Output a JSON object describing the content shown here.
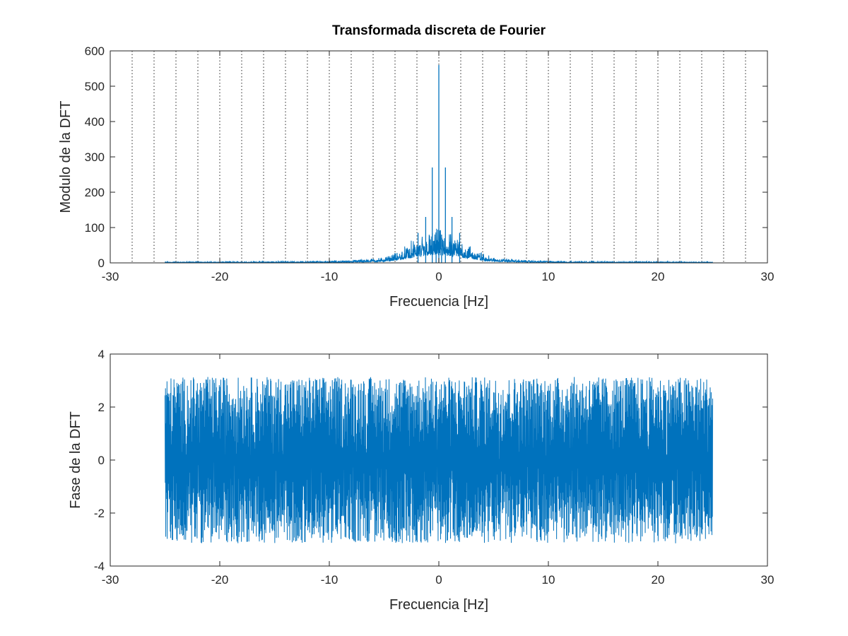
{
  "chart_data": [
    {
      "type": "line",
      "title": "Transformada discreta de Fourier",
      "xlabel": "Frecuencia [Hz]",
      "ylabel": "Modulo de la DFT",
      "xlim": [
        -30,
        30
      ],
      "ylim": [
        0,
        600
      ],
      "xticks": [
        -30,
        -20,
        -10,
        0,
        10,
        20,
        30
      ],
      "yticks": [
        0,
        100,
        200,
        300,
        400,
        500,
        600
      ],
      "xtick_labels": [
        "-30",
        "-20",
        "-10",
        "0",
        "10",
        "20",
        "30"
      ],
      "ytick_labels": [
        "0",
        "100",
        "200",
        "300",
        "400",
        "500",
        "600"
      ],
      "grid": "vertical-dotted",
      "vertical_gridlines_x": [
        -28,
        -26,
        -24,
        -22,
        -20,
        -18,
        -16,
        -14,
        -12,
        -10,
        -8,
        -6,
        -4,
        -2,
        0,
        2,
        4,
        6,
        8,
        10,
        12,
        14,
        16,
        18,
        20,
        22,
        24,
        26,
        28
      ],
      "x_range_of_data": [
        -25,
        25
      ],
      "series_color": "#0072bd",
      "peaks": [
        {
          "x": 0,
          "y": 560
        },
        {
          "x": -0.6,
          "y": 270
        },
        {
          "x": 0.6,
          "y": 270
        },
        {
          "x": -1.2,
          "y": 130
        },
        {
          "x": 1.2,
          "y": 130
        },
        {
          "x": -1.9,
          "y": 85
        },
        {
          "x": 1.9,
          "y": 85
        },
        {
          "x": -0.25,
          "y": 80
        },
        {
          "x": 0.25,
          "y": 80
        }
      ],
      "noise_envelope": [
        {
          "x": -25,
          "y": 2
        },
        {
          "x": -12,
          "y": 3
        },
        {
          "x": -8,
          "y": 5
        },
        {
          "x": -5,
          "y": 10
        },
        {
          "x": -4,
          "y": 18
        },
        {
          "x": -3,
          "y": 30
        },
        {
          "x": -2,
          "y": 45
        },
        {
          "x": -1,
          "y": 55
        },
        {
          "x": 0,
          "y": 60
        },
        {
          "x": 1,
          "y": 55
        },
        {
          "x": 2,
          "y": 45
        },
        {
          "x": 3,
          "y": 30
        },
        {
          "x": 4,
          "y": 18
        },
        {
          "x": 5,
          "y": 10
        },
        {
          "x": 8,
          "y": 5
        },
        {
          "x": 12,
          "y": 3
        },
        {
          "x": 25,
          "y": 2
        }
      ]
    },
    {
      "type": "line",
      "title": "",
      "xlabel": "Frecuencia [Hz]",
      "ylabel": "Fase de la DFT",
      "xlim": [
        -30,
        30
      ],
      "ylim": [
        -4,
        4
      ],
      "xticks": [
        -30,
        -20,
        -10,
        0,
        10,
        20,
        30
      ],
      "yticks": [
        -4,
        -2,
        0,
        2,
        4
      ],
      "xtick_labels": [
        "-30",
        "-20",
        "-10",
        "0",
        "10",
        "20",
        "30"
      ],
      "ytick_labels": [
        "-4",
        "-2",
        "0",
        "2",
        "4"
      ],
      "grid": "off",
      "x_range_of_data": [
        -25,
        25
      ],
      "value_range": [
        -3.14,
        3.14
      ],
      "series_color": "#0072bd"
    }
  ]
}
